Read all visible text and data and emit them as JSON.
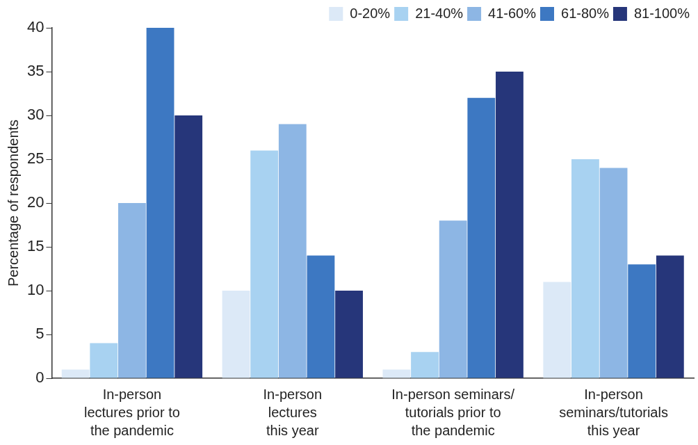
{
  "chart_data": {
    "type": "bar",
    "ylabel": "Percentage of respondents",
    "categories": [
      "In-person\nlectures prior to\nthe pandemic",
      "In-person\nlectures\nthis year",
      "In-person seminars/\ntutorials prior to\nthe pandemic",
      "In-person\nseminars/tutorials\nthis year"
    ],
    "series": [
      {
        "name": "0-20%",
        "color": "#dce9f7",
        "values": [
          1,
          10,
          1,
          11
        ]
      },
      {
        "name": "21-40%",
        "color": "#a8d2f1",
        "values": [
          4,
          26,
          3,
          25
        ]
      },
      {
        "name": "41-60%",
        "color": "#8db6e4",
        "values": [
          20,
          29,
          18,
          24
        ]
      },
      {
        "name": "61-80%",
        "color": "#3d78c2",
        "values": [
          40,
          14,
          32,
          13
        ]
      },
      {
        "name": "81-100%",
        "color": "#26367a",
        "values": [
          30,
          10,
          35,
          14
        ]
      }
    ],
    "ylim": [
      0,
      40
    ],
    "yticks": [
      0,
      5,
      10,
      15,
      20,
      25,
      30,
      35,
      40
    ],
    "grid": false,
    "legend": "top right"
  }
}
